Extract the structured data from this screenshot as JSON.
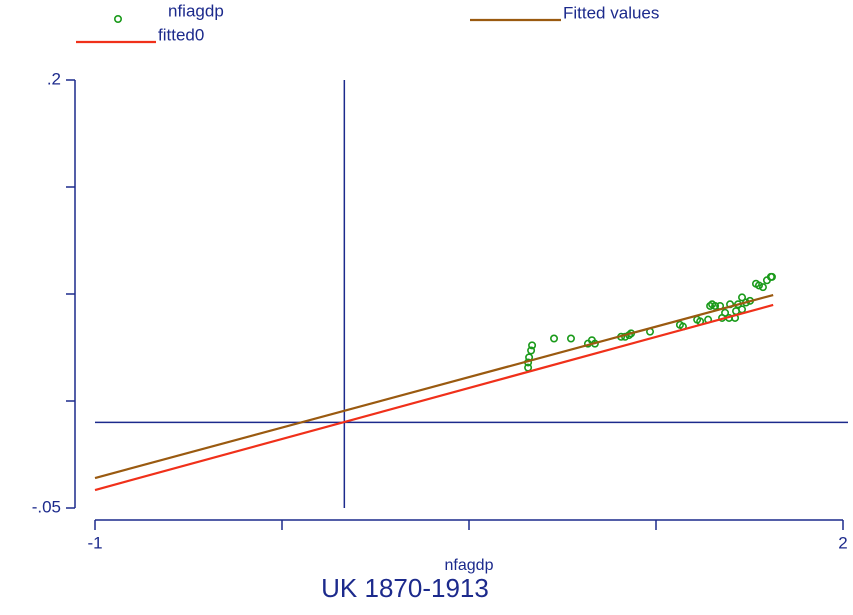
{
  "chart_data": {
    "type": "scatter",
    "title": "UK 1870-1913",
    "x_label": "nfagdp",
    "xlim": [
      -1,
      2
    ],
    "ylim": [
      -0.05,
      0.2
    ],
    "xticks": [
      -1,
      {
        "value": -0.25,
        "label": null
      },
      {
        "value": 0.5,
        "label": null
      },
      {
        "value": 1.25,
        "label": null
      },
      2
    ],
    "yticks": [
      {
        "value": -0.05,
        "label": "-.05"
      },
      {
        "value": 0.0125,
        "label": null
      },
      {
        "value": 0.075,
        "label": null
      },
      {
        "value": 0.1375,
        "label": null
      },
      {
        "value": 0.2,
        "label": ".2"
      }
    ],
    "reference_lines": {
      "x": 0,
      "y": 0,
      "color": "#1c2a8c"
    },
    "axis_color": "#1c2a8c",
    "series": [
      {
        "name": "nfiagdp",
        "color": "#1a9a1a",
        "mode": "markers",
        "x": [
          0.737,
          0.737,
          0.741,
          0.749,
          0.753,
          0.841,
          0.909,
          0.977,
          0.993,
          1.005,
          1.11,
          1.126,
          1.142,
          1.15,
          1.226,
          1.346,
          1.358,
          1.415,
          1.427,
          1.459,
          1.467,
          1.475,
          1.487,
          1.507,
          1.515,
          1.527,
          1.543,
          1.547,
          1.567,
          1.571,
          1.579,
          1.595,
          1.595,
          1.611,
          1.627,
          1.651,
          1.663,
          1.679,
          1.695,
          1.711,
          1.715
        ],
        "values": [
          0.032,
          0.035,
          0.038,
          0.042,
          0.045,
          0.049,
          0.049,
          0.046,
          0.048,
          0.046,
          0.05,
          0.05,
          0.051,
          0.052,
          0.053,
          0.057,
          0.056,
          0.06,
          0.059,
          0.06,
          0.068,
          0.069,
          0.068,
          0.068,
          0.061,
          0.064,
          0.061,
          0.069,
          0.061,
          0.065,
          0.069,
          0.066,
          0.073,
          0.07,
          0.071,
          0.081,
          0.08,
          0.079,
          0.083,
          0.085,
          0.085
        ]
      },
      {
        "name": "Fitted values",
        "color": "#9a5a10",
        "mode": "line",
        "x": [
          -1,
          1.72
        ],
        "values": [
          -0.0325,
          0.0744
        ]
      },
      {
        "name": "fitted0",
        "color": "#f0301a",
        "mode": "line",
        "x": [
          -1,
          1.72
        ],
        "values": [
          -0.0395,
          0.0686
        ]
      }
    ]
  }
}
